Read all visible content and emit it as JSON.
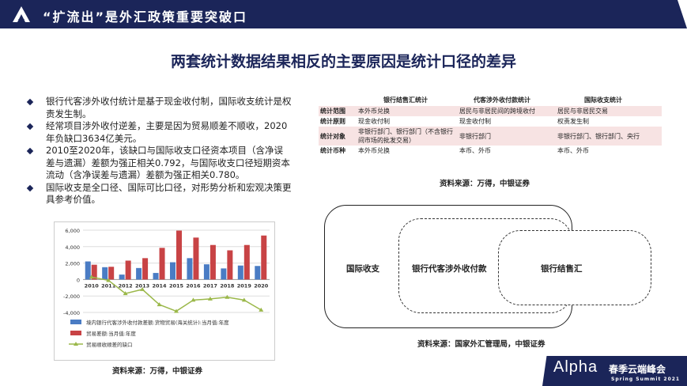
{
  "header": {
    "title": "“扩流出”是外汇政策重要突破口"
  },
  "page_title": "两套统计数据结果相反的主要原因是统计口径的差异",
  "bullets": [
    "银行代客涉外收付统计是基于现金收付制，国际收支统计是权责发生制。",
    "经常项目涉外收付逆差，主要是因为贸易顺差不顺收，2020年负缺口3634亿美元。",
    "2010至2020年，该缺口与国际收支口径资本项目（含净误差与遗漏）差额为强正相关0.792，与国际收支口径短期资本流动（含净误差与遗漏）差额为强正相关0.780。",
    "国际收支是全口径、国际可比口径，对形势分析和宏观决策更具参考价值。"
  ],
  "chart_data": {
    "type": "bar",
    "categories": [
      "2010",
      "2011",
      "2012",
      "2013",
      "2014",
      "2015",
      "2016",
      "2017",
      "2018",
      "2019",
      "2020"
    ],
    "series": [
      {
        "name": "境内银行代客涉外收付款差额:货物贸易(海关统计):当月值:年度",
        "type": "bar",
        "color": "#4a7cc4",
        "values": [
          2200,
          1500,
          600,
          1400,
          800,
          2100,
          2600,
          1850,
          1350,
          1700,
          1650
        ]
      },
      {
        "name": "贸易差额:当月值:年度",
        "type": "bar",
        "color": "#c84345",
        "values": [
          1800,
          1550,
          2300,
          2600,
          3850,
          5950,
          5100,
          4200,
          3550,
          4200,
          5350
        ]
      },
      {
        "name": "贸易顺收顺差的缺口",
        "type": "line",
        "color": "#9bb84a",
        "values": [
          300,
          -100,
          -1700,
          -1200,
          -3050,
          -3850,
          -2500,
          -2350,
          -2150,
          -2500,
          -3700
        ]
      }
    ],
    "yticks": [
      "6,000",
      "4,000",
      "2,000",
      "0",
      "-2,000",
      "-4,000"
    ],
    "ylim": [
      -4000,
      6000
    ],
    "grid": true,
    "legend": "bottom"
  },
  "chart_source": "资料来源：万得，中银证券",
  "table": {
    "headers": [
      "",
      "银行结售汇统计",
      "代客涉外收付款统计",
      "国际收支统计"
    ],
    "rows": [
      [
        "统计范围",
        "本外币兑换",
        "居民与非居民间的跨境收付",
        "居民与非居民交易"
      ],
      [
        "统计原则",
        "现金收付制",
        "现金收付制",
        "权责发生制"
      ],
      [
        "统计对象",
        "非银行部门、银行部门（不含银行间市场的批发交易）",
        "非银行部门",
        "非银行部门、银行部门、央行"
      ],
      [
        "统计币种",
        "本外币兑换",
        "本币、外币",
        "本币、外币"
      ]
    ],
    "source": "资料来源：万得，中银证券"
  },
  "diagram": {
    "outer": "国际收支",
    "middle": "银行代客涉外收付款",
    "inner": "银行结售汇",
    "source": "资料来源：国家外汇管理局，中银证券"
  },
  "footer": {
    "brand": "Alpha",
    "event": "春季云端峰会",
    "sub": "Spring Summit 2021"
  }
}
